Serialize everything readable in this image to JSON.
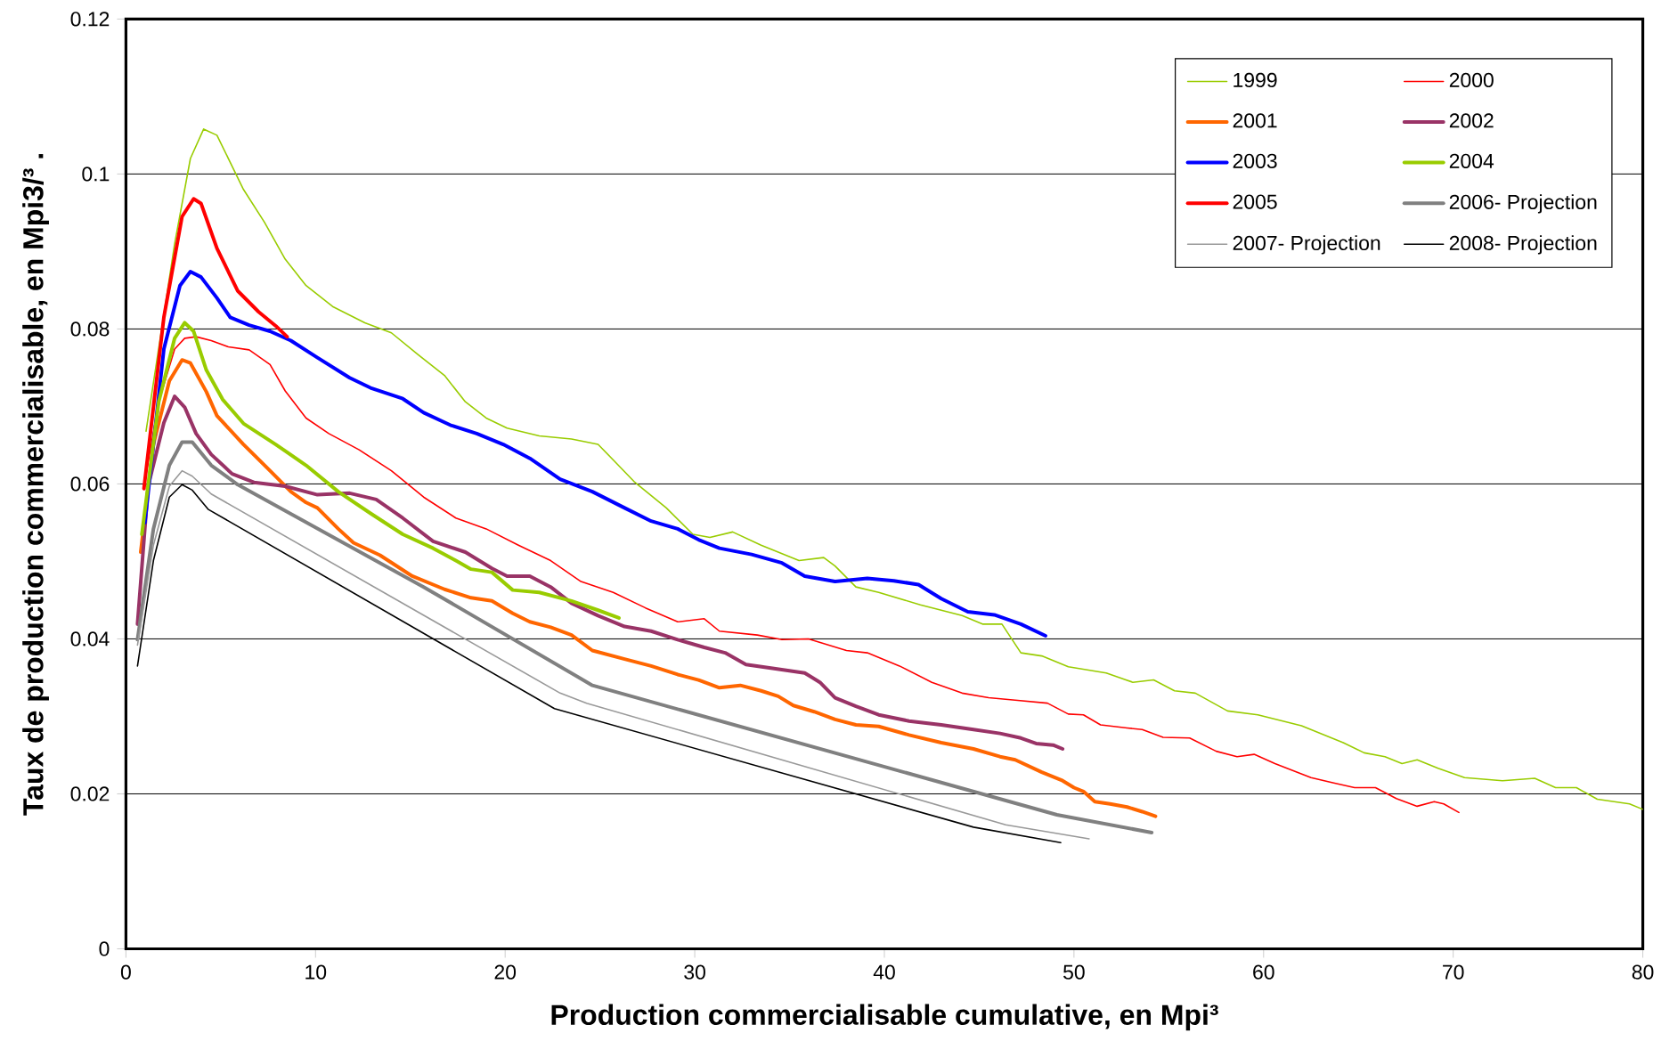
{
  "chart_data": {
    "type": "line",
    "xlabel": "Production commercialisable cumulative, en Mpi³",
    "ylabel": "Taux de production commercialisable, en Mpi3/³ .",
    "xlim": [
      0,
      80
    ],
    "ylim": [
      0,
      0.12
    ],
    "xticks": [
      0,
      10,
      20,
      30,
      40,
      50,
      60,
      70,
      80
    ],
    "yticks": [
      0,
      0.02,
      0.04,
      0.06,
      0.08,
      0.1,
      0.12
    ],
    "grid": "y",
    "legend": "top right",
    "line_style": "solid",
    "marker": "none",
    "series": [
      {
        "name": "1999",
        "color": "#99cc00",
        "x": [
          1.06,
          2.57,
          3.4,
          4.1,
          4.8,
          6.2,
          7.3,
          8.4,
          9.5,
          10.9,
          12.6,
          14.0,
          15.4,
          16.8,
          17.9,
          19.0,
          20.1,
          21.8,
          23.5,
          24.9,
          25.7,
          26.8,
          28.5,
          29.9,
          30.8,
          32.0,
          33.5,
          35.5,
          36.8,
          37.4,
          38.5,
          39.7,
          41.9,
          44.1,
          45.2,
          46.2,
          47.2,
          48.3,
          49.7,
          51.7,
          53.1,
          54.2,
          55.3,
          56.4,
          58.1,
          59.7,
          62.0,
          64.2,
          65.3,
          66.4,
          67.3,
          68.1,
          69.2,
          70.6,
          72.6,
          74.3,
          75.4,
          76.5,
          77.6,
          79.3,
          80
        ],
        "values": [
          0.0668,
          0.091,
          0.102,
          0.1058,
          0.105,
          0.098,
          0.0938,
          0.089,
          0.0856,
          0.0829,
          0.0808,
          0.0795,
          0.0767,
          0.074,
          0.0706,
          0.0685,
          0.0672,
          0.0662,
          0.0658,
          0.0651,
          0.0631,
          0.0603,
          0.0569,
          0.0535,
          0.0531,
          0.0538,
          0.0521,
          0.0501,
          0.0505,
          0.0494,
          0.0467,
          0.046,
          0.0444,
          0.043,
          0.0419,
          0.0419,
          0.0382,
          0.0378,
          0.0364,
          0.0356,
          0.0344,
          0.0347,
          0.0333,
          0.033,
          0.0307,
          0.0302,
          0.0288,
          0.0266,
          0.0253,
          0.0248,
          0.0239,
          0.0244,
          0.0233,
          0.0221,
          0.0217,
          0.022,
          0.0208,
          0.0208,
          0.0193,
          0.0187,
          0.018
        ]
      },
      {
        "name": "2000",
        "color": "#ff0000",
        "x": [
          0.95,
          1.73,
          2.57,
          3.1,
          3.7,
          4.5,
          5.4,
          6.5,
          7.6,
          8.4,
          9.5,
          10.7,
          12.3,
          14.0,
          15.7,
          17.4,
          19.0,
          20.7,
          22.4,
          24.0,
          25.7,
          27.4,
          29.1,
          30.5,
          31.3,
          33.3,
          34.6,
          36.0,
          38.0,
          39.1,
          40.8,
          42.5,
          44.1,
          45.5,
          46.9,
          48.6,
          49.7,
          50.5,
          51.4,
          52.8,
          53.6,
          54.7,
          56.1,
          57.5,
          58.6,
          59.5,
          60.6,
          62.5,
          63.7,
          64.8,
          65.9,
          67.0,
          68.1,
          69.0,
          69.5,
          70.3
        ],
        "values": [
          0.0597,
          0.0706,
          0.0774,
          0.0788,
          0.079,
          0.0785,
          0.0777,
          0.0773,
          0.0754,
          0.072,
          0.0685,
          0.0665,
          0.0644,
          0.0617,
          0.0583,
          0.0556,
          0.0542,
          0.0521,
          0.0501,
          0.0474,
          0.046,
          0.044,
          0.0422,
          0.0426,
          0.041,
          0.0405,
          0.0399,
          0.04,
          0.0385,
          0.0382,
          0.0365,
          0.0344,
          0.033,
          0.0324,
          0.0321,
          0.0317,
          0.0303,
          0.0302,
          0.0289,
          0.0285,
          0.0283,
          0.0273,
          0.0272,
          0.0255,
          0.0248,
          0.0251,
          0.0239,
          0.0221,
          0.0214,
          0.0208,
          0.0208,
          0.0194,
          0.0184,
          0.019,
          0.0187,
          0.0176
        ]
      },
      {
        "name": "2001",
        "color": "#ff6600",
        "x": [
          0.78,
          1.45,
          2.29,
          2.96,
          3.4,
          4.24,
          4.8,
          6.2,
          7.6,
          8.7,
          9.5,
          10.1,
          11.2,
          12.0,
          13.4,
          15.1,
          16.8,
          18.2,
          19.3,
          20.4,
          21.3,
          22.4,
          23.5,
          24.6,
          26.3,
          27.7,
          29.1,
          30.2,
          31.3,
          32.4,
          33.5,
          34.4,
          35.2,
          36.3,
          37.4,
          38.5,
          39.7,
          41.3,
          43.0,
          44.7,
          46.1,
          46.9,
          48.3,
          49.4,
          50.0,
          50.5,
          51.1,
          51.9,
          52.8,
          53.6,
          54.3
        ],
        "values": [
          0.0512,
          0.0651,
          0.0733,
          0.076,
          0.0756,
          0.0719,
          0.0688,
          0.0651,
          0.0617,
          0.059,
          0.0576,
          0.0569,
          0.0542,
          0.0524,
          0.0508,
          0.0481,
          0.0464,
          0.0453,
          0.0449,
          0.0433,
          0.0422,
          0.0415,
          0.0405,
          0.0385,
          0.0374,
          0.0365,
          0.0354,
          0.0347,
          0.0337,
          0.034,
          0.0333,
          0.0326,
          0.0314,
          0.0306,
          0.0296,
          0.0289,
          0.0287,
          0.0276,
          0.0266,
          0.0258,
          0.0248,
          0.0244,
          0.0228,
          0.0217,
          0.0208,
          0.0203,
          0.019,
          0.0187,
          0.0183,
          0.0177,
          0.0171
        ]
      },
      {
        "name": "2002",
        "color": "#993366",
        "x": [
          0.61,
          1.17,
          2.0,
          2.57,
          3.1,
          3.7,
          4.5,
          5.6,
          6.75,
          8.4,
          10.1,
          11.8,
          13.2,
          14.6,
          16.2,
          17.9,
          19.3,
          20.1,
          21.3,
          22.4,
          23.5,
          24.9,
          26.3,
          27.7,
          29.1,
          30.5,
          31.6,
          32.7,
          34.1,
          35.8,
          36.6,
          37.4,
          38.5,
          39.7,
          41.3,
          43.0,
          44.7,
          46.1,
          47.2,
          48.0,
          48.9,
          49.4
        ],
        "values": [
          0.0419,
          0.0597,
          0.0679,
          0.0713,
          0.0699,
          0.0665,
          0.0638,
          0.0613,
          0.0602,
          0.0597,
          0.0586,
          0.0588,
          0.058,
          0.0556,
          0.0526,
          0.0512,
          0.0491,
          0.0481,
          0.0481,
          0.0467,
          0.0446,
          0.043,
          0.0416,
          0.041,
          0.0399,
          0.0389,
          0.0382,
          0.0367,
          0.0362,
          0.0356,
          0.0344,
          0.0324,
          0.0313,
          0.0302,
          0.0294,
          0.0289,
          0.0283,
          0.0278,
          0.0272,
          0.0265,
          0.0263,
          0.0258
        ]
      },
      {
        "name": "2003",
        "color": "#0000ff",
        "x": [
          1.0,
          2.0,
          2.85,
          3.4,
          3.96,
          4.8,
          5.5,
          6.5,
          7.6,
          8.7,
          10.1,
          11.8,
          12.9,
          14.6,
          15.7,
          17.1,
          18.5,
          19.9,
          21.3,
          22.9,
          24.6,
          26.3,
          27.7,
          29.1,
          30.2,
          31.3,
          33.0,
          34.6,
          35.8,
          37.4,
          39.1,
          40.5,
          41.8,
          43.0,
          44.4,
          45.8,
          47.2,
          48.5
        ],
        "values": [
          0.055,
          0.0774,
          0.0856,
          0.0874,
          0.0867,
          0.084,
          0.0815,
          0.0805,
          0.0797,
          0.0785,
          0.0763,
          0.0737,
          0.0724,
          0.071,
          0.0692,
          0.0676,
          0.0665,
          0.0651,
          0.0633,
          0.0606,
          0.059,
          0.0569,
          0.0552,
          0.0542,
          0.0528,
          0.0517,
          0.0509,
          0.0498,
          0.0481,
          0.0474,
          0.0478,
          0.0475,
          0.047,
          0.0452,
          0.0435,
          0.0431,
          0.0419,
          0.0404
        ]
      },
      {
        "name": "2004",
        "color": "#99cc00",
        "x": [
          0.84,
          1.73,
          2.57,
          3.1,
          3.57,
          4.24,
          5.1,
          6.2,
          7.9,
          9.5,
          11.2,
          12.9,
          14.6,
          16.2,
          17.4,
          18.2,
          19.3,
          20.4,
          21.8,
          23.5,
          24.9,
          26.0
        ],
        "values": [
          0.0535,
          0.0706,
          0.0788,
          0.0808,
          0.0797,
          0.0747,
          0.0709,
          0.0678,
          0.0651,
          0.0624,
          0.059,
          0.0562,
          0.0535,
          0.0517,
          0.0501,
          0.049,
          0.0486,
          0.0463,
          0.046,
          0.0449,
          0.0437,
          0.0427
        ]
      },
      {
        "name": "2005",
        "color": "#ff0000",
        "x": [
          0.95,
          2.0,
          2.96,
          3.57,
          3.96,
          4.8,
          5.9,
          7.0,
          7.9,
          8.5
        ],
        "values": [
          0.0594,
          0.0815,
          0.0945,
          0.0968,
          0.0962,
          0.0904,
          0.0849,
          0.0822,
          0.0804,
          0.079
        ]
      },
      {
        "name": "2006- Projection",
        "color": "#808080",
        "x": [
          0.61,
          1.45,
          2.29,
          2.96,
          3.5,
          4.5,
          5.9,
          15.7,
          24.6,
          49.1,
          54.1
        ],
        "values": [
          0.0399,
          0.0542,
          0.0624,
          0.0654,
          0.0654,
          0.0624,
          0.0599,
          0.0467,
          0.034,
          0.0173,
          0.015
        ]
      },
      {
        "name": "2007- Projection",
        "color": "#999999",
        "x": [
          0.61,
          1.45,
          2.29,
          2.96,
          3.5,
          4.5,
          22.9,
          24.3,
          46.4,
          50.8
        ],
        "values": [
          0.0392,
          0.0521,
          0.0597,
          0.0617,
          0.061,
          0.0587,
          0.033,
          0.0317,
          0.016,
          0.0142
        ]
      },
      {
        "name": "2008- Projection",
        "color": "#000000",
        "x": [
          0.61,
          1.45,
          2.29,
          2.96,
          3.5,
          4.35,
          22.6,
          44.7,
          49.3
        ],
        "values": [
          0.0365,
          0.0501,
          0.0583,
          0.0599,
          0.0592,
          0.0567,
          0.031,
          0.0157,
          0.0137
        ]
      }
    ]
  }
}
